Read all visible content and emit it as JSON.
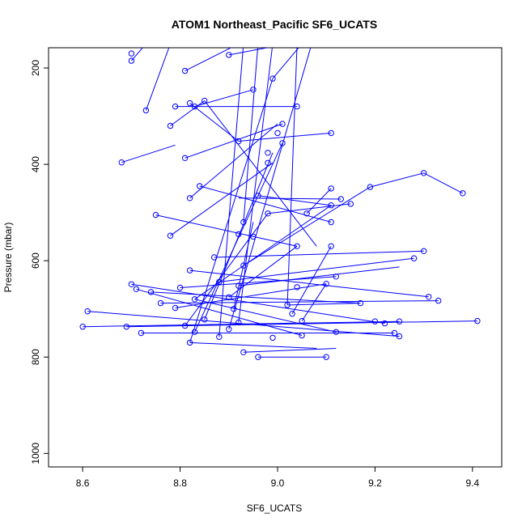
{
  "chart_data": {
    "type": "scatter",
    "title": "ATOM1 Northeast_Pacific SF6_UCATS",
    "xlabel": "SF6_UCATS",
    "ylabel": "Pressure (mbar)",
    "xlim": [
      8.53,
      9.46
    ],
    "ylim": [
      1028,
      158
    ],
    "y_reversed": true,
    "x_ticks": [
      8.6,
      8.8,
      9.0,
      9.2,
      9.4
    ],
    "x_tick_labels": [
      "8.6",
      "8.8",
      "9.0",
      "9.2",
      "9.4"
    ],
    "y_ticks": [
      200,
      400,
      600,
      800,
      1000
    ],
    "y_tick_labels": [
      "200",
      "400",
      "600",
      "800",
      "1000"
    ],
    "grid": false,
    "legend": "none",
    "series_color": "#0000ff",
    "marker": "open-circle",
    "connected": true,
    "points": [
      [
        8.96,
        800
      ],
      [
        9.1,
        800
      ],
      [
        8.93,
        790
      ],
      [
        8.82,
        770
      ],
      [
        8.99,
        760
      ],
      [
        8.88,
        758
      ],
      [
        9.25,
        757
      ],
      [
        9.05,
        755
      ],
      [
        8.72,
        750
      ],
      [
        9.24,
        750
      ],
      [
        8.83,
        748
      ],
      [
        9.12,
        748
      ],
      [
        8.9,
        742
      ],
      [
        8.6,
        737
      ],
      [
        8.69,
        737
      ],
      [
        8.81,
        735
      ],
      [
        9.22,
        730
      ],
      [
        9.05,
        725
      ],
      [
        9.41,
        725
      ],
      [
        8.92,
        728
      ],
      [
        8.85,
        722
      ],
      [
        9.2,
        726
      ],
      [
        9.25,
        726
      ],
      [
        8.61,
        705
      ],
      [
        8.79,
        698
      ],
      [
        8.91,
        700
      ],
      [
        9.03,
        710
      ],
      [
        9.02,
        692
      ],
      [
        9.17,
        688
      ],
      [
        8.76,
        688
      ],
      [
        8.83,
        680
      ],
      [
        8.9,
        676
      ],
      [
        9.31,
        675
      ],
      [
        8.74,
        665
      ],
      [
        9.33,
        683
      ],
      [
        8.71,
        659
      ],
      [
        8.8,
        656
      ],
      [
        8.92,
        652
      ],
      [
        8.7,
        649
      ],
      [
        9.04,
        655
      ],
      [
        9.1,
        648
      ],
      [
        8.88,
        644
      ],
      [
        9.12,
        633
      ],
      [
        8.82,
        620
      ],
      [
        8.93,
        610
      ],
      [
        9.28,
        595
      ],
      [
        8.87,
        593
      ],
      [
        9.3,
        580
      ],
      [
        9.04,
        570
      ],
      [
        9.11,
        570
      ],
      [
        8.95,
        550
      ],
      [
        8.78,
        548
      ],
      [
        8.92,
        545
      ],
      [
        9.11,
        520
      ],
      [
        8.93,
        520
      ],
      [
        8.75,
        505
      ],
      [
        8.98,
        502
      ],
      [
        9.06,
        502
      ],
      [
        8.96,
        465
      ],
      [
        8.82,
        470
      ],
      [
        9.13,
        472
      ],
      [
        9.15,
        482
      ],
      [
        9.11,
        485
      ],
      [
        9.19,
        447
      ],
      [
        9.3,
        418
      ],
      [
        9.38,
        460
      ],
      [
        8.84,
        445
      ],
      [
        9.11,
        450
      ],
      [
        8.68,
        396
      ],
      [
        8.98,
        397
      ],
      [
        8.81,
        387
      ],
      [
        8.92,
        352
      ],
      [
        9.01,
        356
      ],
      [
        8.98,
        376
      ],
      [
        9.11,
        335
      ],
      [
        9.01,
        316
      ],
      [
        9.0,
        335
      ],
      [
        8.78,
        320
      ],
      [
        8.73,
        288
      ],
      [
        8.79,
        280
      ],
      [
        9.04,
        280
      ],
      [
        8.83,
        280
      ],
      [
        8.85,
        268
      ],
      [
        8.82,
        273
      ],
      [
        8.95,
        245
      ],
      [
        8.99,
        222
      ],
      [
        8.81,
        206
      ],
      [
        8.7,
        185
      ],
      [
        8.7,
        170
      ],
      [
        8.9,
        173
      ]
    ],
    "segments": [
      [
        [
          8.96,
          800
        ],
        [
          9.1,
          800
        ]
      ],
      [
        [
          8.93,
          790
        ],
        [
          9.12,
          782
        ]
      ],
      [
        [
          8.82,
          770
        ],
        [
          9.08,
          782
        ]
      ],
      [
        [
          8.72,
          750
        ],
        [
          9.24,
          750
        ]
      ],
      [
        [
          8.69,
          737
        ],
        [
          9.41,
          725
        ]
      ],
      [
        [
          8.6,
          737
        ],
        [
          9.25,
          726
        ]
      ],
      [
        [
          8.61,
          705
        ],
        [
          9.25,
          757
        ]
      ],
      [
        [
          8.71,
          659
        ],
        [
          9.05,
          755
        ]
      ],
      [
        [
          8.7,
          649
        ],
        [
          9.22,
          730
        ]
      ],
      [
        [
          8.74,
          665
        ],
        [
          9.17,
          688
        ]
      ],
      [
        [
          8.76,
          688
        ],
        [
          9.33,
          683
        ]
      ],
      [
        [
          8.8,
          656
        ],
        [
          9.12,
          633
        ]
      ],
      [
        [
          8.82,
          620
        ],
        [
          9.31,
          675
        ]
      ],
      [
        [
          8.88,
          644
        ],
        [
          9.28,
          595
        ]
      ],
      [
        [
          8.87,
          593
        ],
        [
          9.3,
          580
        ]
      ],
      [
        [
          8.92,
          652
        ],
        [
          9.25,
          613
        ]
      ],
      [
        [
          8.93,
          610
        ],
        [
          9.19,
          447
        ]
      ],
      [
        [
          9.19,
          447
        ],
        [
          9.3,
          418
        ]
      ],
      [
        [
          9.3,
          418
        ],
        [
          9.38,
          460
        ]
      ],
      [
        [
          8.98,
          502
        ],
        [
          9.15,
          482
        ]
      ],
      [
        [
          8.92,
          470
        ],
        [
          9.13,
          472
        ]
      ],
      [
        [
          8.96,
          465
        ],
        [
          9.11,
          485
        ]
      ],
      [
        [
          9.06,
          502
        ],
        [
          9.11,
          450
        ]
      ],
      [
        [
          8.84,
          445
        ],
        [
          9.11,
          520
        ]
      ],
      [
        [
          8.75,
          505
        ],
        [
          9.04,
          570
        ]
      ],
      [
        [
          8.78,
          548
        ],
        [
          8.99,
          397
        ]
      ],
      [
        [
          8.81,
          387
        ],
        [
          9.01,
          316
        ]
      ],
      [
        [
          8.68,
          396
        ],
        [
          8.79,
          360
        ]
      ],
      [
        [
          8.92,
          352
        ],
        [
          9.11,
          335
        ]
      ],
      [
        [
          8.82,
          470
        ],
        [
          9.0,
          316
        ]
      ],
      [
        [
          8.78,
          320
        ],
        [
          8.85,
          268
        ]
      ],
      [
        [
          8.73,
          288
        ],
        [
          8.78,
          150
        ]
      ],
      [
        [
          8.79,
          280
        ],
        [
          9.04,
          280
        ]
      ],
      [
        [
          8.83,
          280
        ],
        [
          8.95,
          245
        ]
      ],
      [
        [
          8.85,
          268
        ],
        [
          9.08,
          570
        ]
      ],
      [
        [
          8.82,
          273
        ],
        [
          8.92,
          352
        ]
      ],
      [
        [
          8.7,
          185
        ],
        [
          8.73,
          150
        ]
      ],
      [
        [
          8.81,
          206
        ],
        [
          8.92,
          150
        ]
      ],
      [
        [
          8.9,
          173
        ],
        [
          9.02,
          150
        ]
      ],
      [
        [
          8.99,
          222
        ],
        [
          9.05,
          150
        ]
      ],
      [
        [
          8.82,
          770
        ],
        [
          8.99,
          222
        ]
      ],
      [
        [
          8.83,
          748
        ],
        [
          9.01,
          356
        ]
      ],
      [
        [
          8.9,
          742
        ],
        [
          9.07,
          150
        ]
      ],
      [
        [
          8.85,
          722
        ],
        [
          8.99,
          376
        ]
      ],
      [
        [
          9.02,
          692
        ],
        [
          9.04,
          150
        ]
      ],
      [
        [
          9.03,
          710
        ],
        [
          9.11,
          570
        ]
      ],
      [
        [
          8.92,
          728
        ],
        [
          8.99,
          150
        ]
      ],
      [
        [
          8.88,
          758
        ],
        [
          8.93,
          150
        ]
      ],
      [
        [
          8.91,
          700
        ],
        [
          8.95,
          520
        ]
      ],
      [
        [
          8.93,
          520
        ],
        [
          8.96,
          150
        ]
      ],
      [
        [
          8.81,
          735
        ],
        [
          8.98,
          502
        ]
      ],
      [
        [
          9.12,
          748
        ],
        [
          8.83,
          680
        ]
      ],
      [
        [
          8.79,
          698
        ],
        [
          9.1,
          648
        ]
      ],
      [
        [
          9.02,
          692
        ],
        [
          9.17,
          688
        ]
      ],
      [
        [
          8.9,
          676
        ],
        [
          9.04,
          570
        ]
      ],
      [
        [
          9.05,
          725
        ],
        [
          9.1,
          648
        ]
      ],
      [
        [
          8.83,
          680
        ],
        [
          9.11,
          485
        ]
      ]
    ]
  }
}
